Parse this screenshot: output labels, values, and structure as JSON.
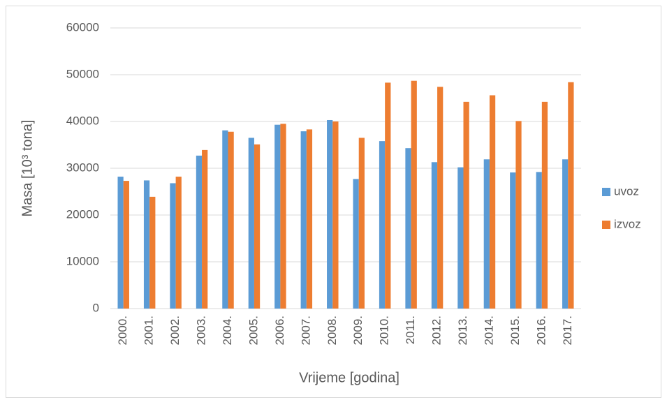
{
  "chart_data": {
    "type": "bar",
    "xlabel": "Vrijeme [godina]",
    "ylabel": "Masa [10³ tona]",
    "categories": [
      "2000.",
      "2001.",
      "2002.",
      "2003.",
      "2004.",
      "2005.",
      "2006.",
      "2007.",
      "2008.",
      "2009.",
      "2010.",
      "2011.",
      "2012.",
      "2013.",
      "2014.",
      "2015.",
      "2016.",
      "2017."
    ],
    "series": [
      {
        "name": "uvoz",
        "color": "#5b9bd5",
        "values": [
          28200,
          27400,
          26800,
          32700,
          38100,
          36500,
          39300,
          37900,
          40300,
          27700,
          35800,
          34300,
          31300,
          30200,
          31900,
          29100,
          29200,
          31900
        ]
      },
      {
        "name": "izvoz",
        "color": "#ed7d31",
        "values": [
          27300,
          23900,
          28200,
          33900,
          37800,
          35100,
          39500,
          38300,
          40000,
          36500,
          48300,
          48700,
          47400,
          44200,
          45600,
          40100,
          44200,
          48400
        ]
      }
    ],
    "ylim": [
      0,
      60000
    ],
    "yticks": [
      0,
      10000,
      20000,
      30000,
      40000,
      50000,
      60000
    ],
    "grid": true,
    "legend": "right"
  }
}
